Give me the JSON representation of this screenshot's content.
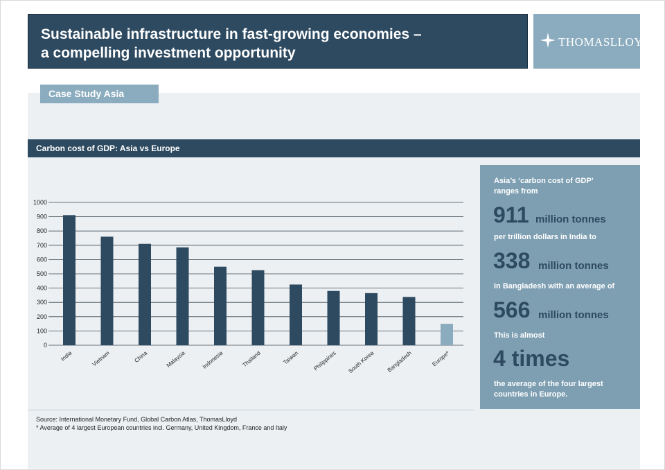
{
  "header": {
    "title_line1": "Sustainable infrastructure in fast-growing economies –",
    "title_line2": "a compelling investment opportunity",
    "logo_text": "THOMASLLOYD"
  },
  "section_tab": "Case Study Asia",
  "chart_header": "Carbon cost of GDP: Asia vs Europe",
  "chart_data": {
    "type": "bar",
    "title": "Carbon cost of GDP: Asia vs Europe",
    "categories": [
      "India",
      "Vietnam",
      "China",
      "Malaysia",
      "Indonesia",
      "Thailand",
      "Taiwan",
      "Philippines",
      "South Korea",
      "Bangladesh",
      "Europe*"
    ],
    "values": [
      911,
      760,
      710,
      685,
      550,
      525,
      425,
      380,
      365,
      338,
      150
    ],
    "ylim": [
      0,
      1000
    ],
    "yticks": [
      0,
      100,
      200,
      300,
      400,
      500,
      600,
      700,
      800,
      900,
      1000
    ],
    "grid": true,
    "colors": {
      "asia": "#2e4a60",
      "europe": "#8aacbe"
    }
  },
  "info": {
    "line1": "Asia’s ‘carbon cost of GDP’",
    "line2": "ranges from",
    "num1": "911",
    "unit1": "million tonnes",
    "line3": "per trillion dollars in India to",
    "num2": "338",
    "unit2": "million tonnes",
    "line4": "in Bangladesh with an average of",
    "num3": "566",
    "unit3": "million tonnes",
    "line5": "This is  almost",
    "num4": "4 times",
    "line6": "the average of the four largest",
    "line7": "countries in Europe."
  },
  "source": {
    "line1": "Source: International Monetary Fund, Global Carbon Atlas, ThomasLloyd",
    "line2": "* Average of 4 largest European countries incl. Germany, United Kingdom, France and Italy"
  }
}
